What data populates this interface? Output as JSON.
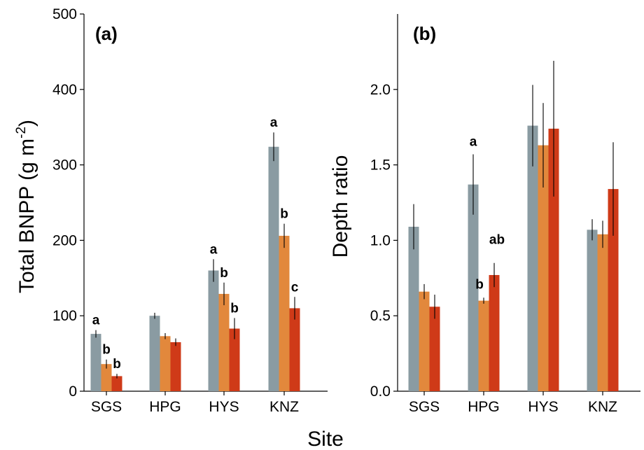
{
  "x_axis_title": "Site",
  "series_colors": [
    "#8a9ba2",
    "#e2883c",
    "#cf3a18"
  ],
  "chart_data": [
    {
      "type": "bar",
      "panel_label": "(a)",
      "ylabel": "Total BNPP (g m-2)",
      "ylabel_main": "Total BNPP (g m",
      "ylabel_sup": "-2",
      "ylabel_end": ")",
      "categories": [
        "SGS",
        "HPG",
        "HYS",
        "KNZ"
      ],
      "ylim": [
        0,
        500
      ],
      "yticks": [
        0,
        100,
        200,
        300,
        400,
        500
      ],
      "ytick_labels": [
        "0",
        "100",
        "200",
        "300",
        "400",
        "500"
      ],
      "series": [
        {
          "values": [
            76,
            100,
            160,
            324
          ],
          "error": [
            5,
            4,
            15,
            19
          ]
        },
        {
          "values": [
            36,
            73,
            129,
            206
          ],
          "error": [
            6,
            4,
            15,
            16
          ]
        },
        {
          "values": [
            20,
            65,
            83,
            110
          ],
          "error": [
            3,
            5,
            14,
            15
          ]
        }
      ],
      "letters": [
        [
          "a",
          "",
          "a",
          "a"
        ],
        [
          "b",
          "",
          "b",
          "b"
        ],
        [
          "b",
          "",
          "b",
          "c"
        ]
      ]
    },
    {
      "type": "bar",
      "panel_label": "(b)",
      "ylabel": "Depth ratio",
      "categories": [
        "SGS",
        "HPG",
        "HYS",
        "KNZ"
      ],
      "ylim": [
        0,
        2.5
      ],
      "yticks": [
        0,
        0.5,
        1.0,
        1.5,
        2.0
      ],
      "ytick_labels": [
        "0.0",
        "0.5",
        "1.0",
        "1.5",
        "2.0"
      ],
      "series": [
        {
          "values": [
            1.09,
            1.37,
            1.76,
            1.07
          ],
          "error": [
            0.15,
            0.2,
            0.27,
            0.07
          ]
        },
        {
          "values": [
            0.66,
            0.6,
            1.63,
            1.04
          ],
          "error": [
            0.05,
            0.02,
            0.28,
            0.09
          ]
        },
        {
          "values": [
            0.56,
            0.77,
            1.74,
            1.34
          ],
          "error": [
            0.08,
            0.08,
            0.45,
            0.31
          ]
        }
      ],
      "letters": [
        [
          "",
          "a",
          "",
          ""
        ],
        [
          "",
          "b",
          "",
          ""
        ],
        [
          "",
          "ab",
          "",
          ""
        ]
      ]
    }
  ]
}
